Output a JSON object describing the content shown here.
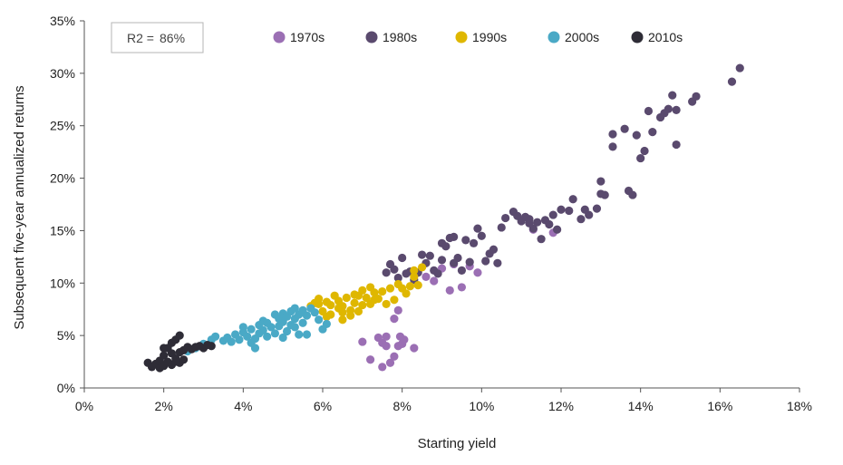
{
  "chart_data": {
    "type": "scatter",
    "title": "",
    "xlabel": "Starting yield",
    "ylabel": "Subsequent five-year annualized returns",
    "xlim": [
      0,
      18
    ],
    "ylim": [
      0,
      35
    ],
    "x_ticks": [
      {
        "value": 0,
        "label": "0%"
      },
      {
        "value": 2,
        "label": "2%"
      },
      {
        "value": 4,
        "label": "4%"
      },
      {
        "value": 6,
        "label": "6%"
      },
      {
        "value": 8,
        "label": "8%"
      },
      {
        "value": 10,
        "label": "10%"
      },
      {
        "value": 12,
        "label": "12%"
      },
      {
        "value": 14,
        "label": "14%"
      },
      {
        "value": 16,
        "label": "16%"
      },
      {
        "value": 18,
        "label": "18%"
      }
    ],
    "y_ticks": [
      {
        "value": 0,
        "label": "0%"
      },
      {
        "value": 5,
        "label": "5%"
      },
      {
        "value": 10,
        "label": "10%"
      },
      {
        "value": 15,
        "label": "15%"
      },
      {
        "value": 20,
        "label": "20%"
      },
      {
        "value": 25,
        "label": "25%"
      },
      {
        "value": 30,
        "label": "30%"
      },
      {
        "value": 35,
        "label": "35%"
      }
    ],
    "grid": false,
    "legend_position": "top",
    "annotation": {
      "label": "R2 =",
      "value": "86%"
    },
    "series": [
      {
        "name": "1970s",
        "color": "#9b6fb4",
        "points": [
          [
            7.0,
            4.4
          ],
          [
            7.2,
            2.7
          ],
          [
            7.4,
            4.8
          ],
          [
            7.5,
            4.3
          ],
          [
            7.6,
            4.9
          ],
          [
            7.6,
            4.0
          ],
          [
            7.5,
            2.0
          ],
          [
            7.7,
            2.4
          ],
          [
            7.8,
            3.0
          ],
          [
            7.9,
            4.0
          ],
          [
            7.95,
            4.9
          ],
          [
            8.0,
            4.2
          ],
          [
            8.05,
            4.6
          ],
          [
            8.3,
            3.8
          ],
          [
            7.8,
            6.6
          ],
          [
            7.9,
            7.4
          ],
          [
            8.6,
            10.6
          ],
          [
            8.8,
            10.2
          ],
          [
            9.0,
            11.4
          ],
          [
            9.2,
            9.3
          ],
          [
            9.5,
            9.6
          ],
          [
            9.7,
            11.6
          ],
          [
            9.9,
            11.0
          ],
          [
            11.3,
            15.1
          ],
          [
            11.8,
            14.8
          ],
          [
            9.3,
            11.8
          ]
        ]
      },
      {
        "name": "1980s",
        "color": "#5a4a6e",
        "points": [
          [
            7.6,
            11.0
          ],
          [
            7.7,
            11.8
          ],
          [
            7.8,
            11.3
          ],
          [
            7.9,
            10.5
          ],
          [
            8.0,
            12.4
          ],
          [
            8.1,
            10.9
          ],
          [
            8.2,
            11.1
          ],
          [
            8.3,
            10.3
          ],
          [
            8.4,
            11.0
          ],
          [
            8.5,
            12.7
          ],
          [
            8.6,
            11.9
          ],
          [
            8.7,
            12.6
          ],
          [
            8.8,
            11.2
          ],
          [
            8.9,
            10.9
          ],
          [
            9.0,
            12.2
          ],
          [
            9.0,
            13.8
          ],
          [
            9.1,
            13.5
          ],
          [
            9.2,
            14.3
          ],
          [
            9.3,
            14.4
          ],
          [
            9.3,
            11.9
          ],
          [
            9.4,
            12.4
          ],
          [
            9.5,
            11.2
          ],
          [
            9.6,
            14.1
          ],
          [
            9.7,
            12.0
          ],
          [
            9.8,
            13.8
          ],
          [
            9.9,
            15.2
          ],
          [
            10.0,
            14.5
          ],
          [
            10.1,
            12.1
          ],
          [
            10.2,
            12.8
          ],
          [
            10.3,
            13.2
          ],
          [
            10.4,
            11.9
          ],
          [
            10.5,
            15.3
          ],
          [
            10.6,
            16.2
          ],
          [
            10.8,
            16.8
          ],
          [
            11.0,
            15.9
          ],
          [
            11.1,
            16.3
          ],
          [
            11.2,
            16.1
          ],
          [
            11.3,
            15.2
          ],
          [
            11.4,
            15.8
          ],
          [
            11.5,
            14.2
          ],
          [
            11.6,
            16.0
          ],
          [
            11.7,
            15.6
          ],
          [
            11.8,
            16.5
          ],
          [
            11.9,
            15.1
          ],
          [
            12.0,
            17.0
          ],
          [
            12.2,
            16.9
          ],
          [
            12.3,
            18.0
          ],
          [
            12.5,
            16.1
          ],
          [
            12.7,
            16.5
          ],
          [
            12.9,
            17.1
          ],
          [
            13.0,
            18.5
          ],
          [
            13.0,
            19.7
          ],
          [
            13.1,
            18.4
          ],
          [
            13.3,
            23.0
          ],
          [
            13.3,
            24.2
          ],
          [
            13.6,
            24.7
          ],
          [
            13.7,
            18.8
          ],
          [
            13.8,
            18.4
          ],
          [
            13.9,
            24.1
          ],
          [
            14.0,
            21.9
          ],
          [
            14.1,
            22.6
          ],
          [
            14.2,
            26.4
          ],
          [
            14.3,
            24.4
          ],
          [
            14.5,
            25.8
          ],
          [
            14.6,
            26.2
          ],
          [
            14.7,
            26.6
          ],
          [
            14.8,
            27.9
          ],
          [
            14.9,
            26.5
          ],
          [
            14.9,
            23.2
          ],
          [
            15.3,
            27.3
          ],
          [
            15.4,
            27.8
          ],
          [
            16.3,
            29.2
          ],
          [
            16.5,
            30.5
          ],
          [
            11.2,
            15.7
          ],
          [
            10.9,
            16.4
          ],
          [
            12.6,
            17.0
          ]
        ]
      },
      {
        "name": "1990s",
        "color": "#dfb700",
        "points": [
          [
            5.7,
            7.8
          ],
          [
            5.8,
            8.1
          ],
          [
            5.9,
            8.5
          ],
          [
            6.0,
            7.3
          ],
          [
            6.1,
            8.2
          ],
          [
            6.1,
            6.8
          ],
          [
            6.2,
            7.9
          ],
          [
            6.3,
            8.8
          ],
          [
            6.4,
            7.6
          ],
          [
            6.4,
            8.3
          ],
          [
            6.5,
            6.5
          ],
          [
            6.5,
            7.8
          ],
          [
            6.6,
            8.6
          ],
          [
            6.7,
            6.9
          ],
          [
            6.7,
            7.4
          ],
          [
            6.8,
            8.9
          ],
          [
            6.8,
            8.1
          ],
          [
            6.9,
            7.3
          ],
          [
            7.0,
            9.3
          ],
          [
            7.0,
            7.9
          ],
          [
            7.1,
            8.6
          ],
          [
            7.2,
            9.6
          ],
          [
            7.2,
            8.0
          ],
          [
            7.3,
            9.1
          ],
          [
            7.4,
            8.5
          ],
          [
            7.5,
            9.2
          ],
          [
            7.6,
            8.0
          ],
          [
            7.7,
            9.5
          ],
          [
            7.8,
            8.4
          ],
          [
            7.9,
            9.9
          ],
          [
            8.0,
            9.5
          ],
          [
            8.1,
            9.0
          ],
          [
            8.2,
            9.7
          ],
          [
            8.3,
            10.6
          ],
          [
            8.3,
            11.2
          ],
          [
            8.4,
            9.8
          ],
          [
            6.2,
            7.0
          ],
          [
            6.5,
            7.2
          ],
          [
            5.9,
            8.0
          ],
          [
            7.3,
            8.4
          ],
          [
            6.9,
            8.8
          ],
          [
            8.5,
            11.5
          ]
        ]
      },
      {
        "name": "2000s",
        "color": "#4aa9c6",
        "points": [
          [
            2.6,
            3.5
          ],
          [
            2.8,
            3.8
          ],
          [
            3.0,
            4.2
          ],
          [
            3.2,
            4.6
          ],
          [
            3.3,
            4.9
          ],
          [
            3.5,
            4.5
          ],
          [
            3.6,
            4.8
          ],
          [
            3.7,
            4.4
          ],
          [
            3.8,
            5.1
          ],
          [
            3.9,
            4.6
          ],
          [
            4.0,
            5.3
          ],
          [
            4.1,
            4.9
          ],
          [
            4.2,
            5.6
          ],
          [
            4.3,
            4.7
          ],
          [
            4.3,
            3.8
          ],
          [
            4.4,
            6.0
          ],
          [
            4.4,
            5.2
          ],
          [
            4.5,
            6.4
          ],
          [
            4.5,
            5.5
          ],
          [
            4.6,
            4.9
          ],
          [
            4.6,
            6.2
          ],
          [
            4.7,
            5.8
          ],
          [
            4.8,
            5.2
          ],
          [
            4.9,
            6.6
          ],
          [
            4.9,
            5.9
          ],
          [
            5.0,
            7.1
          ],
          [
            5.0,
            6.3
          ],
          [
            5.1,
            5.4
          ],
          [
            5.1,
            6.8
          ],
          [
            5.2,
            7.3
          ],
          [
            5.3,
            6.6
          ],
          [
            5.3,
            5.8
          ],
          [
            5.4,
            7.0
          ],
          [
            5.5,
            6.2
          ],
          [
            5.5,
            7.4
          ],
          [
            5.6,
            6.9
          ],
          [
            5.6,
            5.1
          ],
          [
            5.7,
            7.6
          ],
          [
            5.8,
            7.2
          ],
          [
            5.9,
            6.5
          ],
          [
            6.0,
            5.6
          ],
          [
            6.1,
            6.1
          ],
          [
            5.0,
            4.8
          ],
          [
            4.2,
            4.3
          ],
          [
            4.8,
            7.0
          ],
          [
            5.2,
            6.0
          ],
          [
            5.4,
            5.1
          ],
          [
            4.0,
            5.8
          ],
          [
            5.3,
            7.6
          ]
        ]
      },
      {
        "name": "2010s",
        "color": "#2e2c36",
        "points": [
          [
            1.6,
            2.4
          ],
          [
            1.7,
            2.0
          ],
          [
            1.8,
            2.3
          ],
          [
            1.9,
            1.9
          ],
          [
            1.9,
            2.6
          ],
          [
            2.0,
            2.1
          ],
          [
            2.0,
            3.1
          ],
          [
            2.1,
            2.5
          ],
          [
            2.1,
            3.8
          ],
          [
            2.2,
            2.2
          ],
          [
            2.2,
            4.3
          ],
          [
            2.2,
            3.3
          ],
          [
            2.3,
            2.8
          ],
          [
            2.3,
            4.6
          ],
          [
            2.4,
            3.4
          ],
          [
            2.4,
            2.4
          ],
          [
            2.4,
            5.0
          ],
          [
            2.5,
            2.7
          ],
          [
            2.5,
            3.6
          ],
          [
            2.6,
            3.9
          ],
          [
            2.7,
            3.7
          ],
          [
            2.8,
            3.9
          ],
          [
            2.9,
            4.0
          ],
          [
            3.0,
            3.8
          ],
          [
            3.1,
            4.1
          ],
          [
            3.2,
            4.0
          ],
          [
            2.0,
            3.8
          ],
          [
            2.3,
            2.5
          ]
        ]
      }
    ]
  }
}
